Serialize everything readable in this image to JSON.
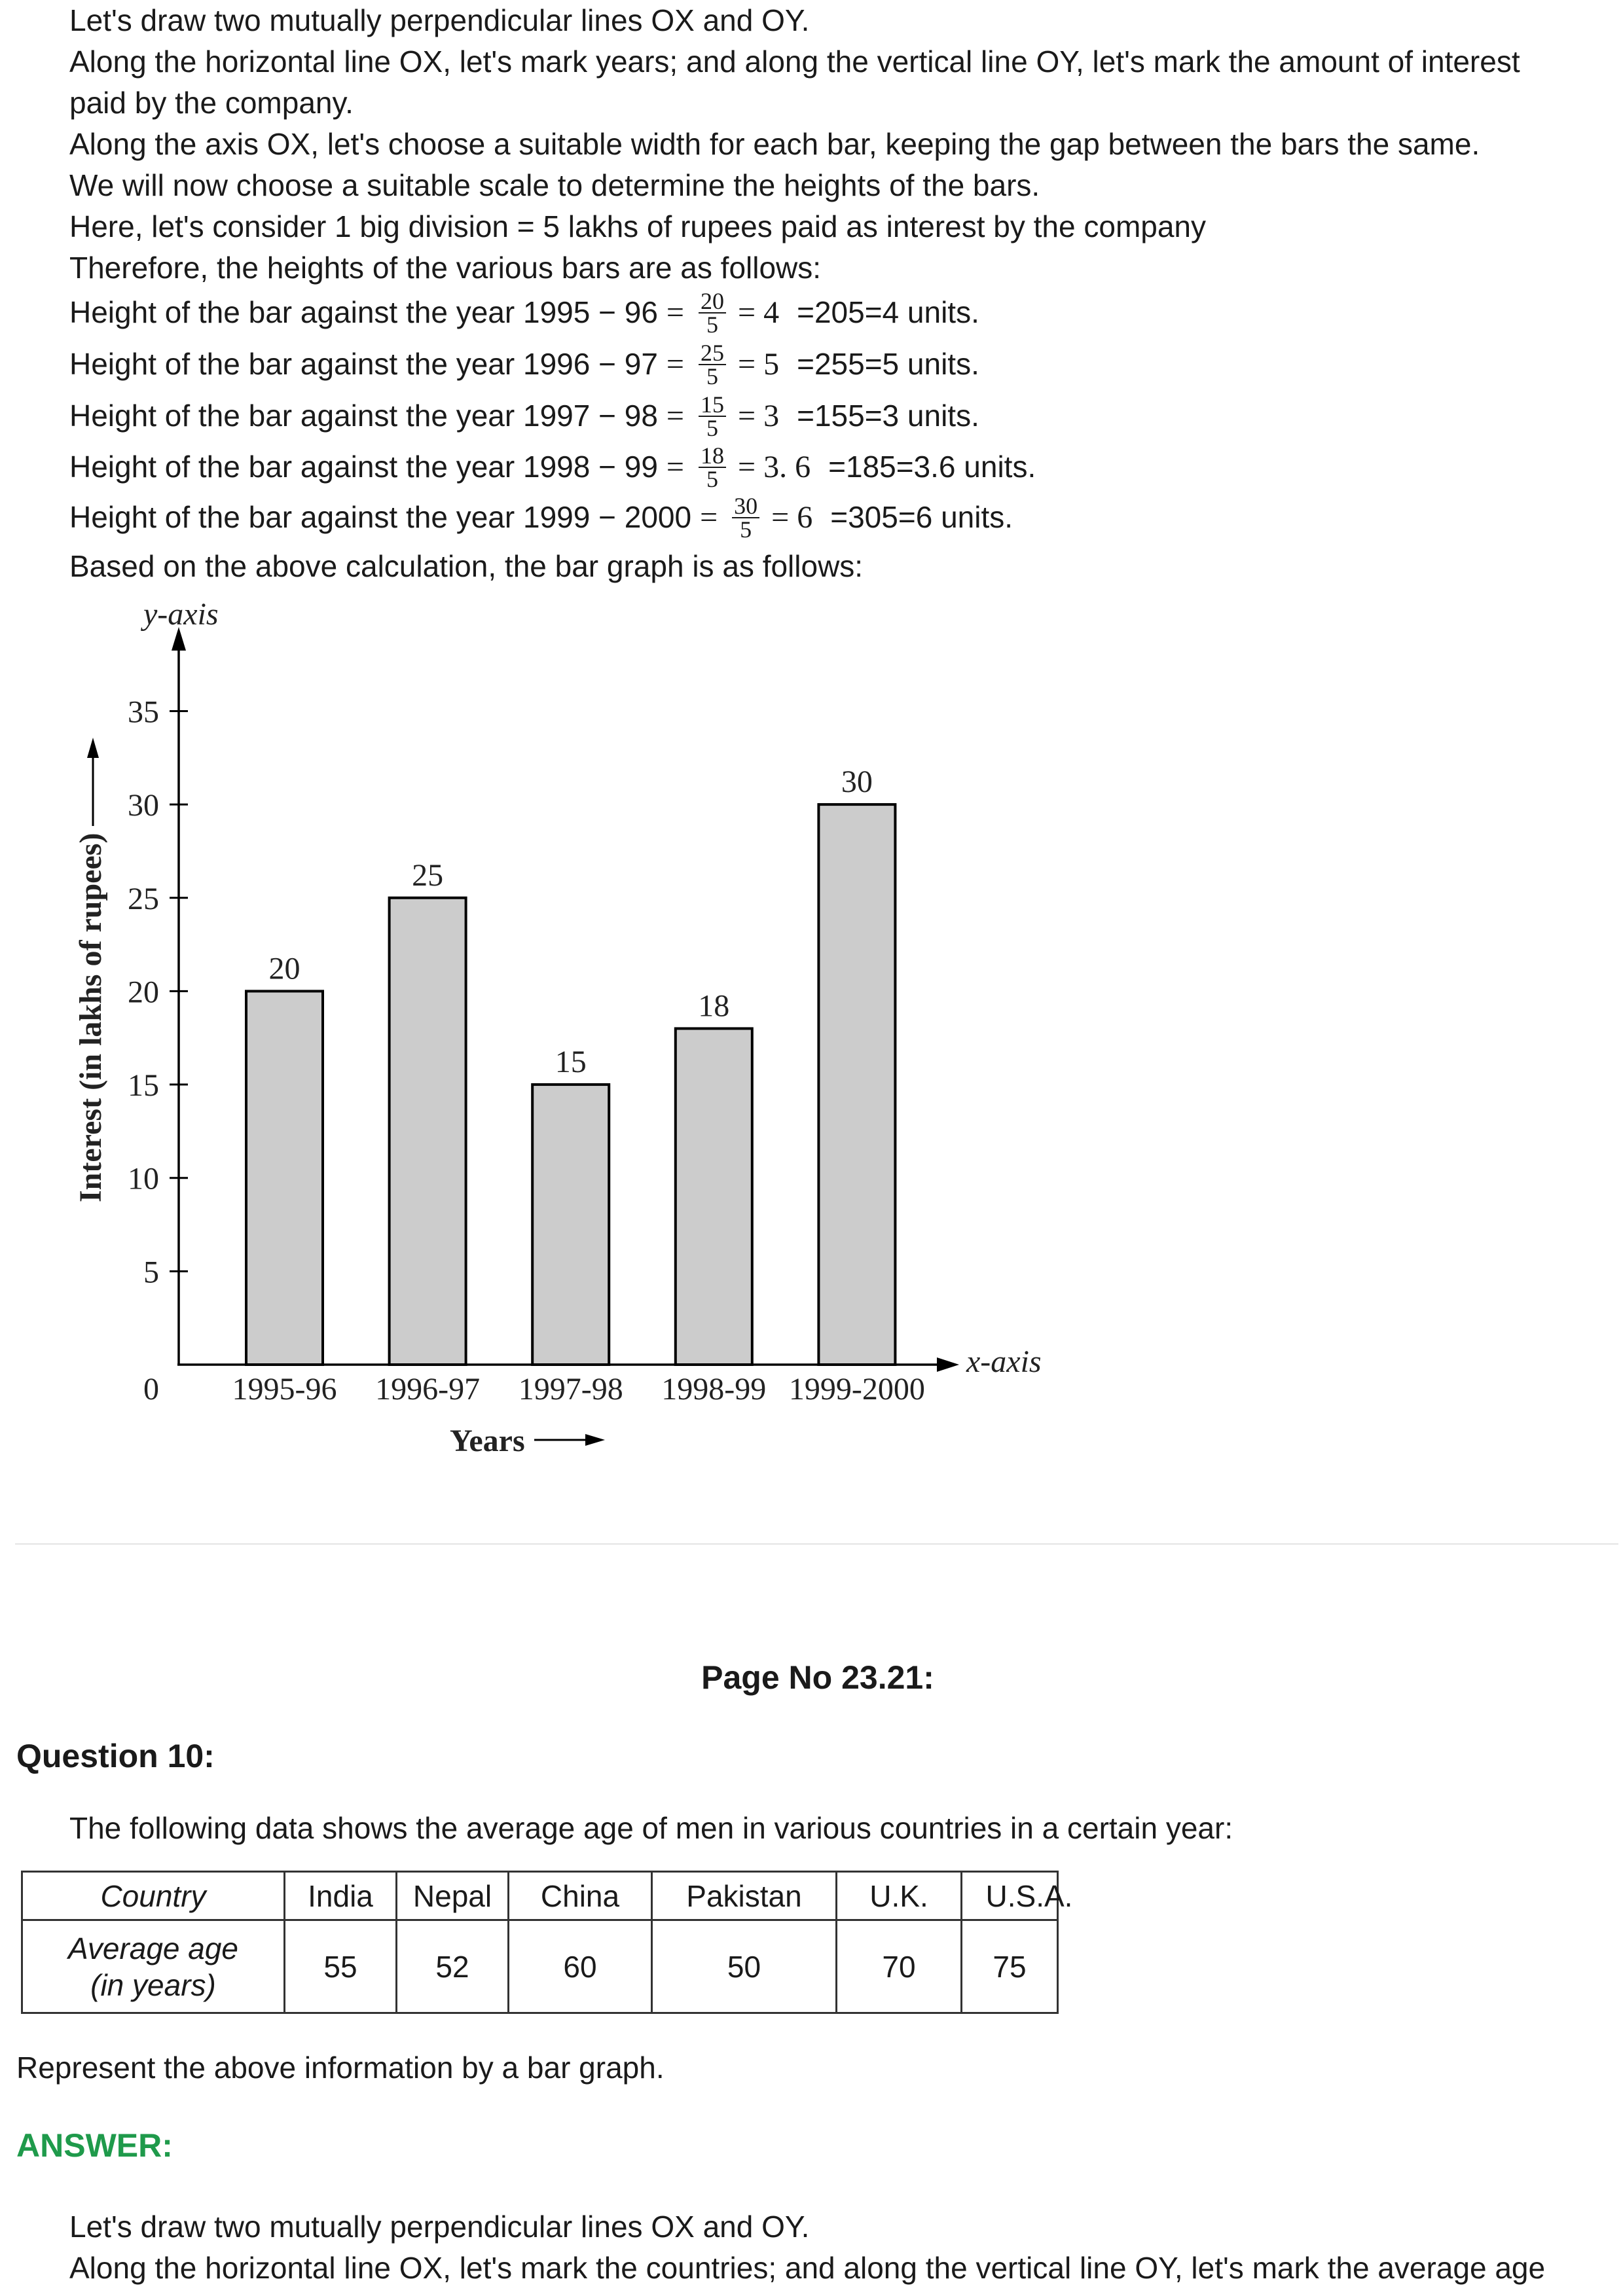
{
  "intro_lines": [
    "Let's draw two mutually perpendicular lines OX and OY.",
    "Along the horizontal line OX, let's mark years; and along the vertical line OY, let's mark the amount of interest",
    "paid by the company.",
    "Along the axis OX, let's choose a suitable width for each bar, keeping the gap between the bars the same.",
    "We will now choose a suitable scale to determine the heights of the bars.",
    "Here, let's consider 1 big division = 5 lakhs of rupees paid as interest by the company",
    "Therefore, the heights of the various bars are as follows:"
  ],
  "height_lines": [
    {
      "label": "Height of the bar against the year 1995 − 96",
      "eq": "=",
      "numerator": "20",
      "denominator": "5",
      "result": "= 4",
      "tail": "=205=4 units."
    },
    {
      "label": "Height of the bar against the year 1996 − 97",
      "eq": "=",
      "numerator": "25",
      "denominator": "5",
      "result": "= 5",
      "tail": "=255=5 units."
    },
    {
      "label": "Height of the bar against the year 1997 − 98",
      "eq": "=",
      "numerator": "15",
      "denominator": "5",
      "result": "= 3",
      "tail": "=155=3 units."
    },
    {
      "label": "Height of the bar against the year 1998 − 99",
      "eq": "=",
      "numerator": "18",
      "denominator": "5",
      "result": "= 3. 6",
      "tail": "=185=3.6 units."
    },
    {
      "label": "Height of the bar against the year 1999 − 2000",
      "eq": "=",
      "numerator": "30",
      "denominator": "5",
      "result": "= 6",
      "tail": "=305=6 units."
    }
  ],
  "conclusion": "Based on the above calculation, the bar graph is as follows:",
  "chart_data": {
    "type": "bar",
    "categories": [
      "1995-96",
      "1996-97",
      "1997-98",
      "1998-99",
      "1999-2000"
    ],
    "values": [
      20,
      25,
      15,
      18,
      30
    ],
    "xlabel": "Years",
    "ylabel": "Interest (in lakhs of rupees)",
    "x_axis_name": "x-axis",
    "y_axis_name": "y-axis",
    "y_ticks": [
      0,
      5,
      10,
      15,
      20,
      25,
      30,
      35
    ],
    "ylim": [
      0,
      35
    ],
    "grid": false,
    "legend": "none",
    "colors": {
      "bar_fill": "#cccccc",
      "bar_outline": "#000000",
      "axis": "#000000"
    }
  },
  "page_number": "Page No 23.21:",
  "question": {
    "title": "Question 10:",
    "prompt": "The following data shows the average age of men in various countries in a certain year:",
    "table": {
      "header_label": "Country",
      "countries": [
        "India",
        "Nepal",
        "China",
        "Pakistan",
        "U.K.",
        "U.S.A."
      ],
      "row_label": [
        "Average age",
        "(in years)"
      ],
      "values": [
        "55",
        "52",
        "60",
        "50",
        "70",
        "75"
      ]
    },
    "instruction": "Represent the above information by a bar graph."
  },
  "answer": {
    "label": "ANSWER:",
    "color": "#1f9a4b",
    "lines": [
      "Let's draw two mutually perpendicular lines OX and OY.",
      "Along the horizontal line OX, let's mark the countries; and along the vertical line OY, let's mark the average age"
    ]
  }
}
